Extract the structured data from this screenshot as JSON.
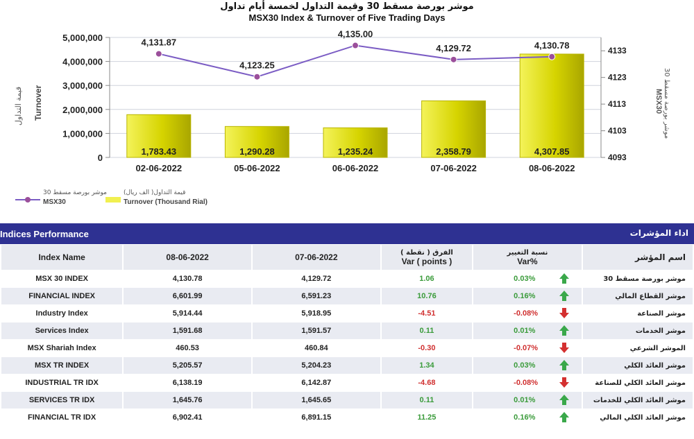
{
  "chart": {
    "title_ar": "موشر بورصة مسقط 30 وقيمة التداول لخمسة أيام تداول",
    "title_en": "MSX30 Index & Turnover of Five Trading Days",
    "left_axis_label_ar": "قيمة التداول",
    "left_axis_label_en": "Turnover",
    "right_axis_label_ar": "موشر بورصة مسقط 30",
    "right_axis_label_en": "MSX30",
    "legend": {
      "msx_ar": "موشر بورصة مسقط 30",
      "msx_en": "MSX30",
      "turnover_ar": "قيمة التداول( الف ريال)",
      "turnover_en": "Turnover (Thousand Rial)"
    }
  },
  "chart_data": {
    "type": "bar",
    "categories": [
      "02-06-2022",
      "05-06-2022",
      "06-06-2022",
      "07-06-2022",
      "08-06-2022"
    ],
    "series": [
      {
        "name": "Turnover (Thousand Rial)",
        "type": "bar",
        "axis": "left",
        "values": [
          1783.43,
          1290.28,
          1235.24,
          2358.79,
          4307.85
        ],
        "value_labels": [
          "1,783.43",
          "1,290.28",
          "1,235.24",
          "2,358.79",
          "4,307.85"
        ]
      },
      {
        "name": "MSX30",
        "type": "line",
        "axis": "right",
        "values": [
          4131.87,
          4123.25,
          4135.0,
          4129.72,
          4130.78
        ],
        "value_labels": [
          "4,131.87",
          "4,123.25",
          "4,135.00",
          "4,129.72",
          "4,130.78"
        ]
      }
    ],
    "left_ticks": [
      "0",
      "1,000,000",
      "2,000,000",
      "3,000,000",
      "4,000,000",
      "5,000,000"
    ],
    "right_ticks": [
      "4093",
      "4103",
      "4113",
      "4123",
      "4133"
    ],
    "right_ylim": [
      4093,
      4138
    ],
    "colors": {
      "bar": "#d8d400",
      "line": "#7b5cc4",
      "marker": "#9b4f9b"
    }
  },
  "panel": {
    "title_en": "Indices Performance",
    "title_ar": "اداء المؤشرات"
  },
  "table": {
    "headers": {
      "index_name": "Index Name",
      "date1": "08-06-2022",
      "date2": "07-06-2022",
      "var_ar": "الفرق ( نقطة )",
      "var_en": "Var ( points )",
      "varpct_ar": "نسبة التغيير",
      "varpct_en": "Var%",
      "name_ar": "اسم المؤشر"
    },
    "rows": [
      {
        "name": "MSX 30 INDEX",
        "d1": "4,130.78",
        "d2": "4,129.72",
        "var": "1.06",
        "pct": "0.03%",
        "dir": "up",
        "name_ar": "موشر بورصة مسقط 30"
      },
      {
        "name": "FINANCIAL INDEX",
        "d1": "6,601.99",
        "d2": "6,591.23",
        "var": "10.76",
        "pct": "0.16%",
        "dir": "up",
        "name_ar": "موشر القطاع المالي"
      },
      {
        "name": "Industry Index",
        "d1": "5,914.44",
        "d2": "5,918.95",
        "var": "-4.51",
        "pct": "-0.08%",
        "dir": "down",
        "name_ar": "موشر الصناعة"
      },
      {
        "name": "Services Index",
        "d1": "1,591.68",
        "d2": "1,591.57",
        "var": "0.11",
        "pct": "0.01%",
        "dir": "up",
        "name_ar": "موشر الخدمات"
      },
      {
        "name": "MSX Shariah Index",
        "d1": "460.53",
        "d2": "460.84",
        "var": "-0.30",
        "pct": "-0.07%",
        "dir": "down",
        "name_ar": "الموشر الشرعي"
      },
      {
        "name": "MSX TR INDEX",
        "d1": "5,205.57",
        "d2": "5,204.23",
        "var": "1.34",
        "pct": "0.03%",
        "dir": "up",
        "name_ar": "موشر العائد الكلي"
      },
      {
        "name": "INDUSTRIAL TR IDX",
        "d1": "6,138.19",
        "d2": "6,142.87",
        "var": "-4.68",
        "pct": "-0.08%",
        "dir": "down",
        "name_ar": "موشر العائد الكلي للصناعة"
      },
      {
        "name": "SERVICES TR IDX",
        "d1": "1,645.76",
        "d2": "1,645.65",
        "var": "0.11",
        "pct": "0.01%",
        "dir": "up",
        "name_ar": "موشر العائد الكلي للخدمات"
      },
      {
        "name": "FINANCIAL TR IDX",
        "d1": "6,902.41",
        "d2": "6,891.15",
        "var": "11.25",
        "pct": "0.16%",
        "dir": "up",
        "name_ar": "موشر العائد الكلي المالي"
      }
    ]
  }
}
